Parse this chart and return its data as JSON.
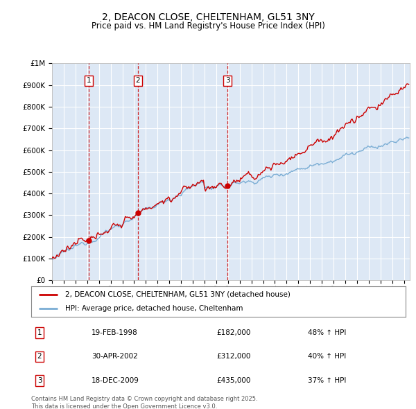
{
  "title": "2, DEACON CLOSE, CHELTENHAM, GL51 3NY",
  "subtitle": "Price paid vs. HM Land Registry's House Price Index (HPI)",
  "legend_line1": "2, DEACON CLOSE, CHELTENHAM, GL51 3NY (detached house)",
  "legend_line2": "HPI: Average price, detached house, Cheltenham",
  "footer": "Contains HM Land Registry data © Crown copyright and database right 2025.\nThis data is licensed under the Open Government Licence v3.0.",
  "transactions": [
    {
      "num": 1,
      "date": "19-FEB-1998",
      "price": "£182,000",
      "hpi": "48% ↑ HPI",
      "year": 1998.13
    },
    {
      "num": 2,
      "date": "30-APR-2002",
      "price": "£312,000",
      "hpi": "40% ↑ HPI",
      "year": 2002.33
    },
    {
      "num": 3,
      "date": "18-DEC-2009",
      "price": "£435,000",
      "hpi": "37% ↑ HPI",
      "year": 2009.96
    }
  ],
  "trans_prices": [
    182000,
    312000,
    435000
  ],
  "ylim": [
    0,
    1000000
  ],
  "xlim_start": 1995.0,
  "xlim_end": 2025.5,
  "background_color": "#ffffff",
  "plot_bg_color": "#dde8f5",
  "red_line_color": "#cc0000",
  "blue_line_color": "#7aadd4",
  "grid_color": "#ffffff",
  "transaction_marker_color": "#cc0000"
}
